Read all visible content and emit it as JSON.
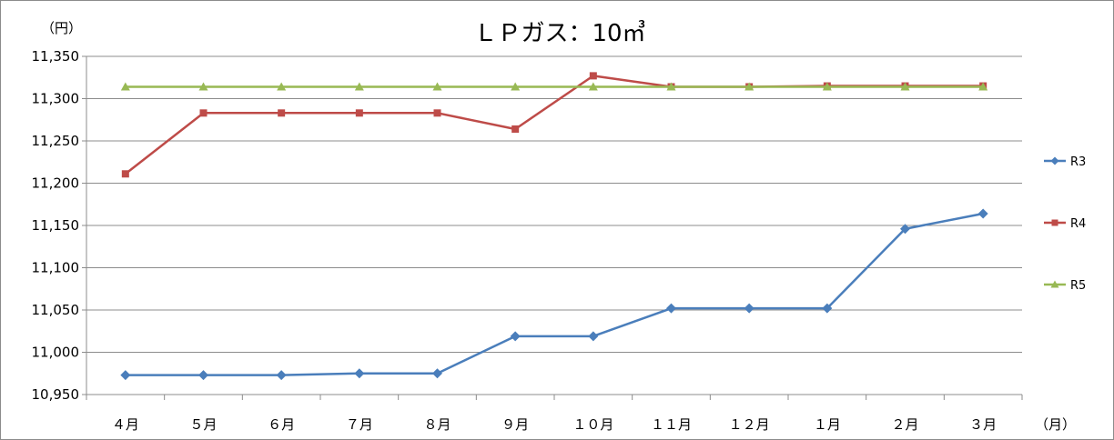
{
  "chart_data": {
    "type": "line",
    "title": "ＬＰガス：10㎥",
    "ylabel": "（円）",
    "xlabel": "（月）",
    "ylim": [
      10950,
      11350
    ],
    "yticks": [
      "10,950",
      "11,000",
      "11,050",
      "11,100",
      "11,150",
      "11,200",
      "11,250",
      "11,300",
      "11,350"
    ],
    "ytick_values": [
      10950,
      11000,
      11050,
      11100,
      11150,
      11200,
      11250,
      11300,
      11350
    ],
    "categories": [
      "４月",
      "５月",
      "６月",
      "７月",
      "８月",
      "９月",
      "１０月",
      "１１月",
      "１２月",
      "１月",
      "２月",
      "３月"
    ],
    "grid": "horizontal",
    "legend_position": "right",
    "series": [
      {
        "name": "R3",
        "color": "#4a7ebb",
        "marker": "diamond",
        "values": [
          10973,
          10973,
          10973,
          10975,
          10975,
          11019,
          11019,
          11052,
          11052,
          11052,
          11146,
          11164
        ]
      },
      {
        "name": "R4",
        "color": "#be4b48",
        "marker": "square",
        "values": [
          11211,
          11283,
          11283,
          11283,
          11283,
          11264,
          11327,
          11314,
          11314,
          11315,
          11315,
          11315
        ]
      },
      {
        "name": "R5",
        "color": "#98b954",
        "marker": "triangle",
        "values": [
          11314,
          11314,
          11314,
          11314,
          11314,
          11314,
          11314,
          11314,
          11314,
          11314,
          11314,
          11314
        ]
      }
    ]
  }
}
